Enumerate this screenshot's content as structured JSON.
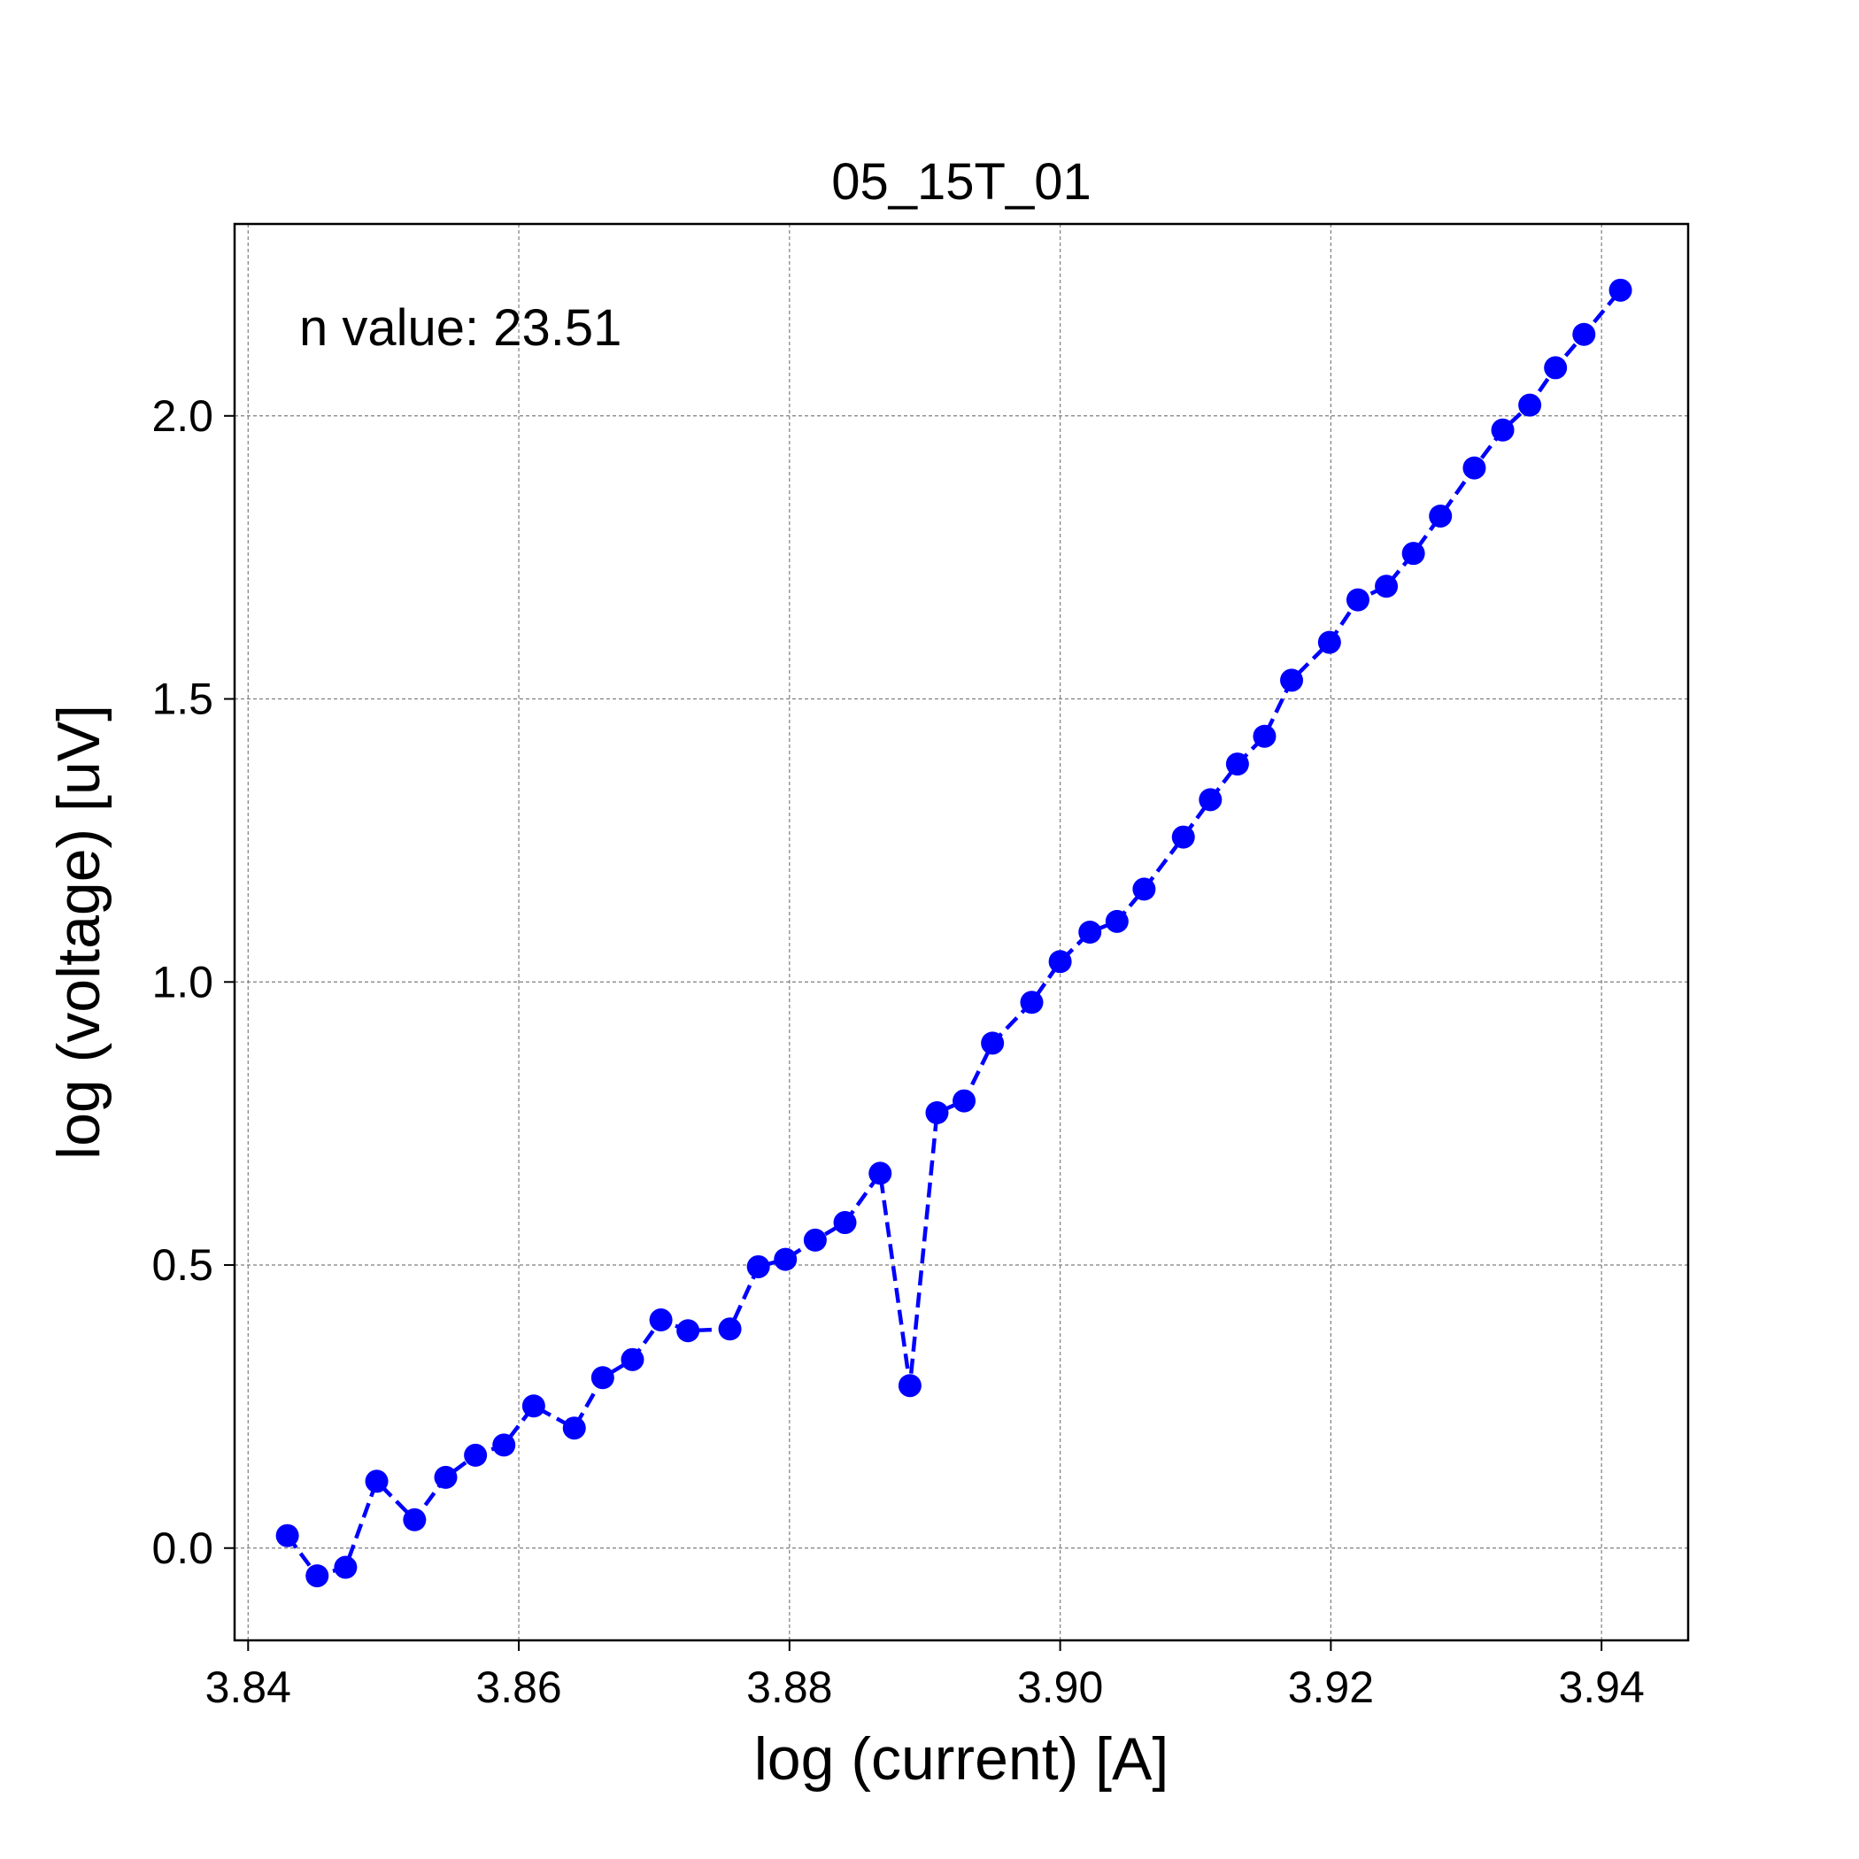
{
  "chart_data": {
    "type": "line",
    "title": "05_15T_01",
    "xlabel": "log (current) [A]",
    "ylabel": "log (voltage) [uV]",
    "xlim": [
      3.839,
      3.9464
    ],
    "ylim": [
      -0.163,
      2.339
    ],
    "xticks": [
      3.84,
      3.86,
      3.88,
      3.9,
      3.92,
      3.94
    ],
    "xtick_labels": [
      "3.84",
      "3.86",
      "3.88",
      "3.90",
      "3.92",
      "3.94"
    ],
    "yticks": [
      0.0,
      0.5,
      1.0,
      1.5,
      2.0
    ],
    "ytick_labels": [
      "0.0",
      "0.5",
      "1.0",
      "1.5",
      "2.0"
    ],
    "grid": true,
    "annotation": "n value: 23.51",
    "series": [
      {
        "color": "#0000ff",
        "line_style": "dashed",
        "marker": "circle",
        "x": [
          3.8429,
          3.8451,
          3.8472,
          3.8495,
          3.8523,
          3.8546,
          3.8568,
          3.8589,
          3.8611,
          3.8641,
          3.8662,
          3.8684,
          3.8705,
          3.8725,
          3.8756,
          3.8777,
          3.8797,
          3.8819,
          3.8841,
          3.8867,
          3.8889,
          3.8909,
          3.8929,
          3.895,
          3.8979,
          3.9,
          3.9022,
          3.9042,
          3.9062,
          3.9091,
          3.9111,
          3.9131,
          3.9151,
          3.9171,
          3.9199,
          3.922,
          3.9241,
          3.9261,
          3.9281,
          3.9306,
          3.9327,
          3.9347,
          3.9366,
          3.9387,
          3.9414
        ],
        "y": [
          0.022,
          -0.049,
          -0.034,
          0.118,
          0.05,
          0.125,
          0.164,
          0.182,
          0.251,
          0.212,
          0.301,
          0.333,
          0.403,
          0.384,
          0.387,
          0.497,
          0.51,
          0.544,
          0.575,
          0.662,
          0.287,
          0.769,
          0.79,
          0.892,
          0.964,
          1.036,
          1.088,
          1.107,
          1.164,
          1.256,
          1.322,
          1.385,
          1.434,
          1.533,
          1.6,
          1.675,
          1.699,
          1.757,
          1.823,
          1.908,
          1.975,
          2.019,
          2.085,
          2.144,
          2.222
        ]
      }
    ]
  }
}
